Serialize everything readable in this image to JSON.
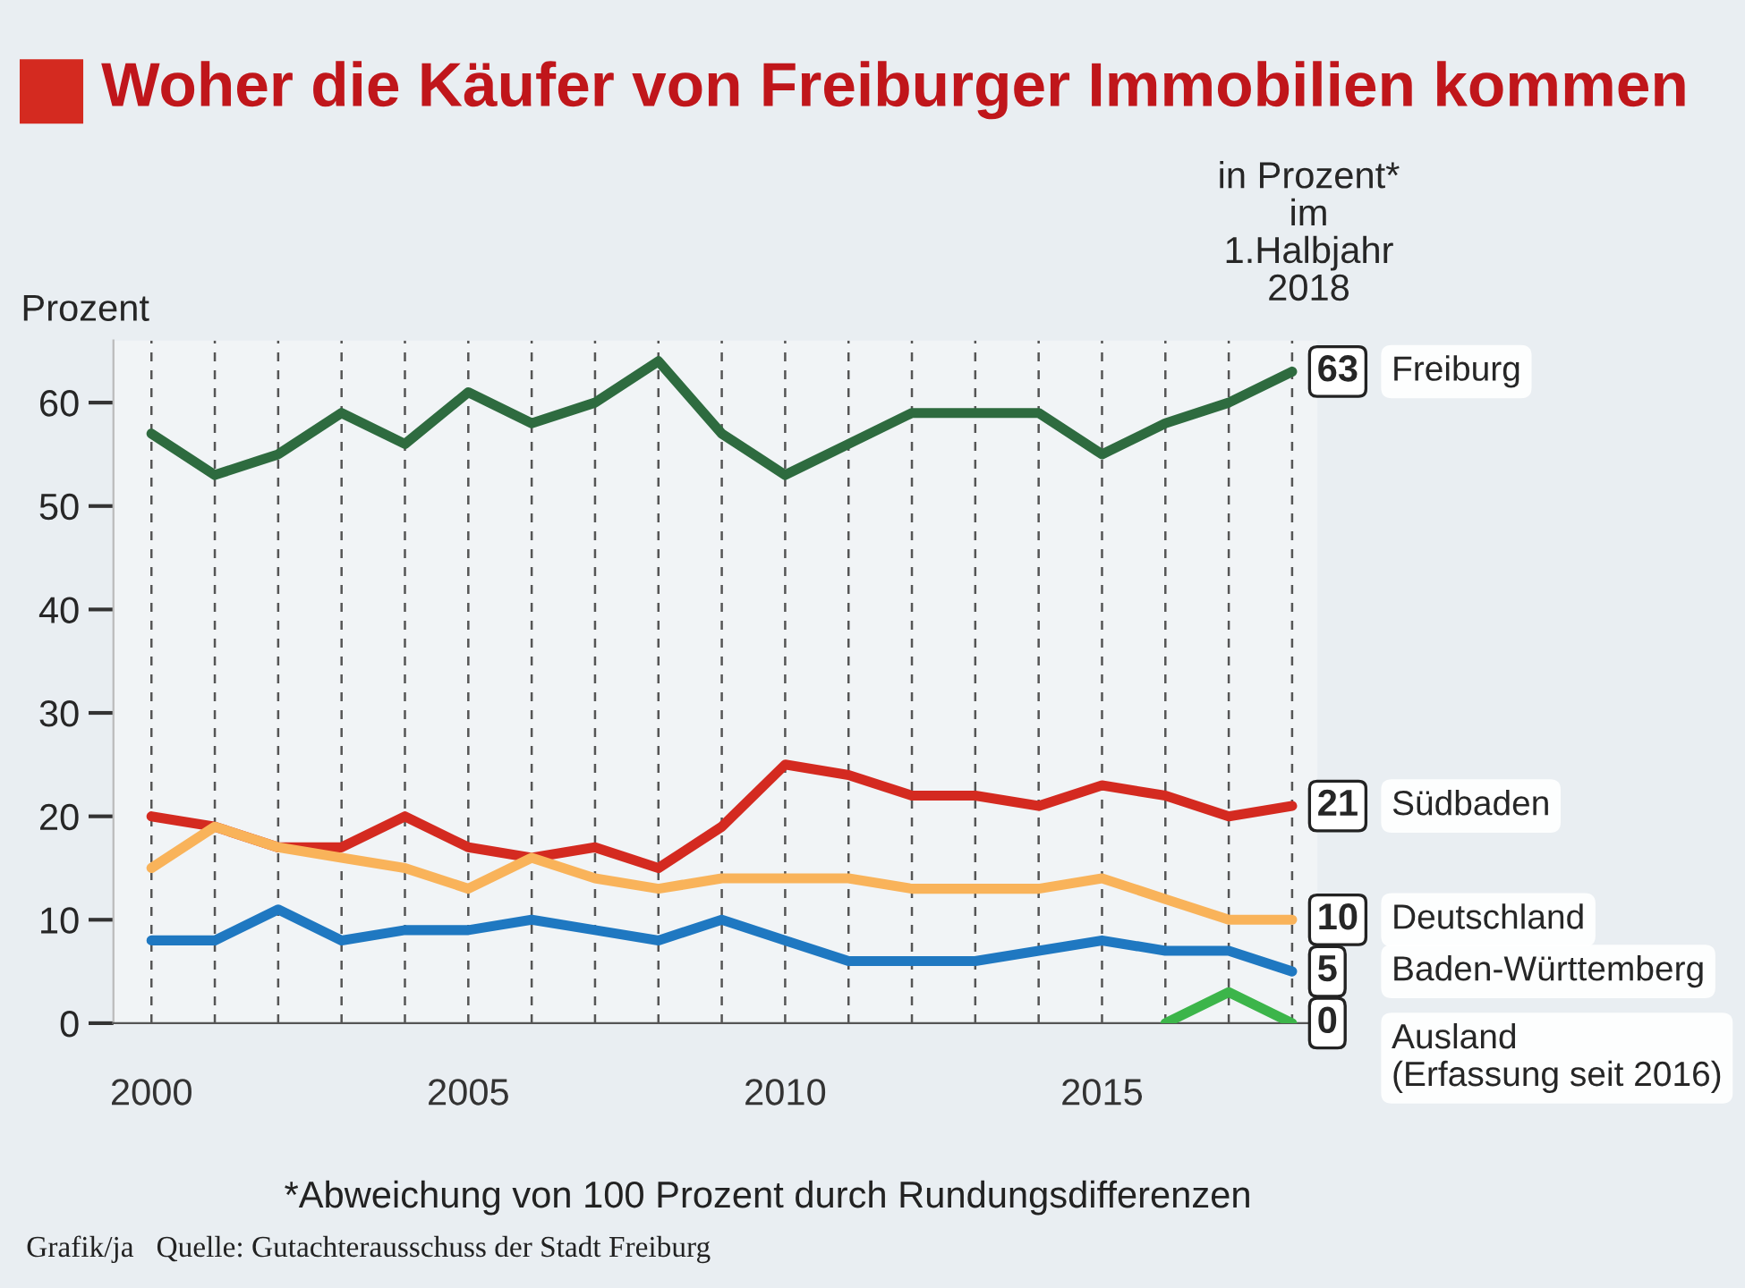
{
  "chart_data": {
    "type": "line",
    "title": "Woher die Käufer von Freiburger Immobilien kommen",
    "ylabel": "Prozent",
    "annotations": [
      "in Prozent*\nim\n1.Halbjahr\n2018",
      "*Abweichung von 100 Prozent durch Rundungsdifferenzen",
      "Grafik/ja   Quelle: Gutachterausschuss der Stadt Freiburg"
    ],
    "x": [
      2000,
      2001,
      2002,
      2003,
      2004,
      2005,
      2006,
      2007,
      2008,
      2009,
      2010,
      2011,
      2012,
      2013,
      2014,
      2015,
      2016,
      2017,
      2018
    ],
    "series": [
      {
        "name": "Freiburg",
        "color": "#2e6b3f",
        "values": [
          57,
          53,
          55,
          59,
          56,
          61,
          58,
          60,
          64,
          57,
          53,
          56,
          59,
          59,
          59,
          55,
          58,
          60,
          63
        ],
        "value_labels": [
          null,
          null,
          null,
          null,
          null,
          null,
          null,
          null,
          null,
          null,
          null,
          null,
          null,
          null,
          null,
          null,
          null,
          null,
          "63"
        ]
      },
      {
        "name": "Südbaden",
        "color": "#d42a20",
        "values": [
          20,
          19,
          17,
          17,
          20,
          17,
          16,
          17,
          15,
          19,
          25,
          24,
          22,
          22,
          21,
          23,
          22,
          20,
          21
        ],
        "value_labels": [
          null,
          null,
          null,
          null,
          null,
          null,
          null,
          null,
          null,
          null,
          null,
          null,
          null,
          null,
          null,
          null,
          null,
          null,
          "21"
        ]
      },
      {
        "name": "Deutschland",
        "color": "#f9b35a",
        "values": [
          15,
          19,
          17,
          16,
          15,
          13,
          16,
          14,
          13,
          14,
          14,
          14,
          13,
          13,
          13,
          14,
          12,
          10,
          10
        ],
        "value_labels": [
          null,
          null,
          null,
          null,
          null,
          null,
          null,
          null,
          null,
          null,
          null,
          null,
          null,
          null,
          null,
          null,
          null,
          null,
          "10"
        ]
      },
      {
        "name": "Baden-Württemberg",
        "color": "#1f78c1",
        "values": [
          8,
          8,
          11,
          8,
          9,
          9,
          10,
          9,
          8,
          10,
          8,
          6,
          6,
          6,
          7,
          8,
          7,
          7,
          5
        ],
        "value_labels": [
          null,
          null,
          null,
          null,
          null,
          null,
          null,
          null,
          null,
          null,
          null,
          null,
          null,
          null,
          null,
          null,
          null,
          null,
          "5"
        ]
      },
      {
        "name": "Ausland\n(Erfassung seit 2016)",
        "color": "#3cb54a",
        "x": [
          2016,
          2017,
          2018
        ],
        "values": [
          0,
          3,
          0
        ],
        "value_labels": [
          null,
          null,
          "0"
        ]
      }
    ],
    "xlim": [
      1999.4,
      2018.4
    ],
    "ylim": [
      0,
      66
    ],
    "xticks": [
      2000,
      {
        "value": 2001,
        "label": null
      },
      {
        "value": 2002,
        "label": null
      },
      {
        "value": 2003,
        "label": null
      },
      {
        "value": 2004,
        "label": null
      },
      2005,
      {
        "value": 2006,
        "label": null
      },
      {
        "value": 2007,
        "label": null
      },
      {
        "value": 2008,
        "label": null
      },
      {
        "value": 2009,
        "label": null
      },
      2010,
      {
        "value": 2011,
        "label": null
      },
      {
        "value": 2012,
        "label": null
      },
      {
        "value": 2013,
        "label": null
      },
      {
        "value": 2014,
        "label": null
      },
      2015,
      {
        "value": 2016,
        "label": null
      },
      {
        "value": 2017,
        "label": null
      },
      {
        "value": 2018,
        "label": null
      }
    ],
    "yticks": [
      0,
      10,
      20,
      30,
      40,
      50,
      60
    ],
    "grid": "x",
    "line_style": "solid",
    "marker": "none"
  }
}
